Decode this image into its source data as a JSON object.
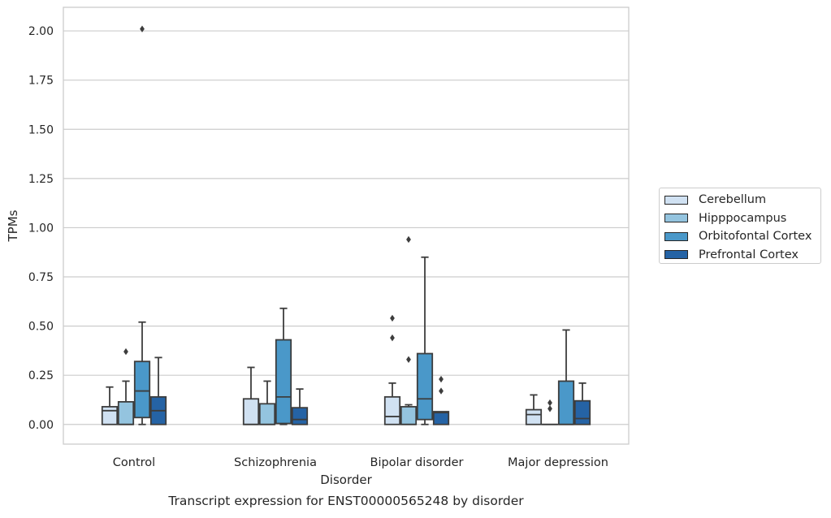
{
  "chart_data": {
    "type": "box",
    "title": "Transcript expression for ENST00000565248 by disorder",
    "xlabel": "Disorder",
    "ylabel": "TPMs",
    "ylim": [
      -0.1,
      2.12
    ],
    "yticks": [
      0.0,
      0.25,
      0.5,
      0.75,
      1.0,
      1.25,
      1.5,
      1.75,
      2.0
    ],
    "ytick_labels": [
      "0.00",
      "0.25",
      "0.50",
      "0.75",
      "1.00",
      "1.25",
      "1.50",
      "1.75",
      "2.00"
    ],
    "grid": true,
    "legend_position": "right",
    "categories": [
      "Control",
      "Schizophrenia",
      "Bipolar disorder",
      "Major depression"
    ],
    "series": [
      {
        "name": "Cerebellum",
        "color": "#d0e1f2",
        "boxes": [
          {
            "q1": 0.0,
            "median": 0.07,
            "q3": 0.09,
            "whisker_low": 0.0,
            "whisker_high": 0.19,
            "outliers": []
          },
          {
            "q1": 0.0,
            "median": 0.0,
            "q3": 0.13,
            "whisker_low": 0.0,
            "whisker_high": 0.29,
            "outliers": []
          },
          {
            "q1": 0.0,
            "median": 0.04,
            "q3": 0.14,
            "whisker_low": 0.0,
            "whisker_high": 0.21,
            "outliers": [
              0.44,
              0.54
            ]
          },
          {
            "q1": 0.0,
            "median": 0.05,
            "q3": 0.075,
            "whisker_low": 0.0,
            "whisker_high": 0.15,
            "outliers": []
          }
        ]
      },
      {
        "name": "Hipppocampus",
        "color": "#94c4df",
        "boxes": [
          {
            "q1": 0.0,
            "median": 0.0,
            "q3": 0.115,
            "whisker_low": 0.0,
            "whisker_high": 0.22,
            "outliers": [
              0.37
            ]
          },
          {
            "q1": 0.0,
            "median": 0.0,
            "q3": 0.105,
            "whisker_low": 0.0,
            "whisker_high": 0.22,
            "outliers": []
          },
          {
            "q1": 0.0,
            "median": 0.0,
            "q3": 0.09,
            "whisker_low": 0.0,
            "whisker_high": 0.1,
            "outliers": [
              0.33,
              0.94
            ]
          },
          {
            "q1": 0.0,
            "median": 0.0,
            "q3": 0.0,
            "whisker_low": 0.0,
            "whisker_high": 0.0,
            "outliers": [
              0.08,
              0.11
            ]
          }
        ]
      },
      {
        "name": "Orbitofontal Cortex",
        "color": "#4a98c9",
        "boxes": [
          {
            "q1": 0.035,
            "median": 0.17,
            "q3": 0.32,
            "whisker_low": 0.0,
            "whisker_high": 0.52,
            "outliers": [
              2.01
            ]
          },
          {
            "q1": 0.005,
            "median": 0.14,
            "q3": 0.43,
            "whisker_low": 0.0,
            "whisker_high": 0.59,
            "outliers": []
          },
          {
            "q1": 0.025,
            "median": 0.13,
            "q3": 0.36,
            "whisker_low": 0.0,
            "whisker_high": 0.85,
            "outliers": []
          },
          {
            "q1": 0.0,
            "median": 0.0,
            "q3": 0.22,
            "whisker_low": 0.0,
            "whisker_high": 0.48,
            "outliers": []
          }
        ]
      },
      {
        "name": "Prefrontal Cortex",
        "color": "#2563a5",
        "boxes": [
          {
            "q1": 0.0,
            "median": 0.07,
            "q3": 0.14,
            "whisker_low": 0.0,
            "whisker_high": 0.34,
            "outliers": []
          },
          {
            "q1": 0.0,
            "median": 0.025,
            "q3": 0.085,
            "whisker_low": 0.0,
            "whisker_high": 0.18,
            "outliers": []
          },
          {
            "q1": 0.0,
            "median": 0.06,
            "q3": 0.065,
            "whisker_low": 0.0,
            "whisker_high": 0.065,
            "outliers": [
              0.17,
              0.23
            ]
          },
          {
            "q1": 0.0,
            "median": 0.03,
            "q3": 0.12,
            "whisker_low": 0.0,
            "whisker_high": 0.21,
            "outliers": []
          }
        ]
      }
    ]
  }
}
